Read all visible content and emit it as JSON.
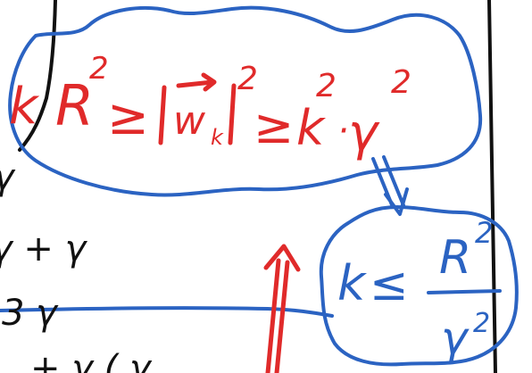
{
  "ink_colors": {
    "red": "#e02a2a",
    "blue": "#2b63c2",
    "black": "#111111"
  },
  "equation_main": {
    "k": "k",
    "R": "R",
    "R_exp": "2",
    "geq_1": "≥",
    "w": "w",
    "w_sub": "k",
    "w_exp": "2",
    "geq_2": "≥",
    "k2": "k",
    "k2_exp": "2",
    "dot": "·",
    "gamma": "γ",
    "gamma_exp": "2"
  },
  "result": {
    "k": "k",
    "leq": "≤",
    "numerator": "R",
    "numerator_exp": "2",
    "denominator": "γ",
    "denominator_exp": "2"
  },
  "left_notes": {
    "line1": "γ",
    "line2": "γ + γ",
    "line3": "3 γ",
    "line4": "+ γ   ( γ"
  }
}
